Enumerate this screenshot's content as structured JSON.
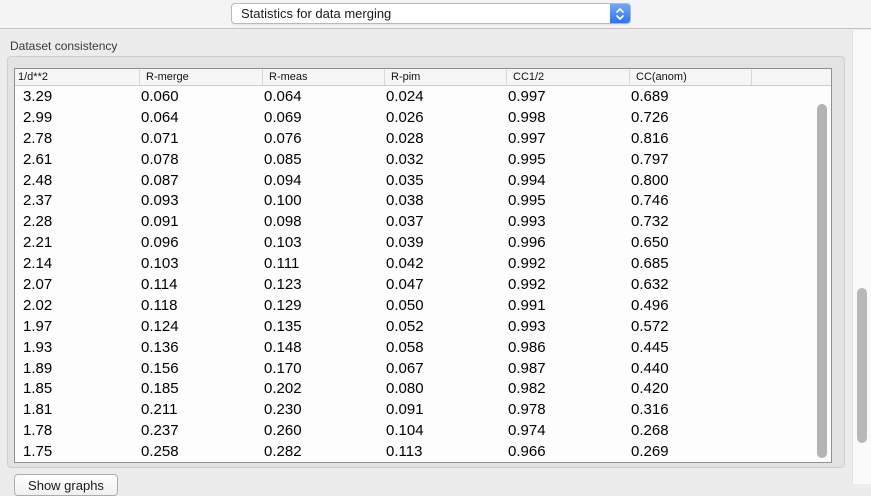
{
  "toolbar": {
    "view_selector": {
      "value": "Statistics for data merging"
    }
  },
  "groupbox": {
    "title": "Dataset consistency"
  },
  "table": {
    "columns": [
      "1/d**2",
      "R-merge",
      "R-meas",
      "R-pim",
      "CC1/2",
      "CC(anom)",
      ""
    ],
    "rows": [
      [
        "3.29",
        "0.060",
        "0.064",
        "0.024",
        "0.997",
        "0.689"
      ],
      [
        "2.99",
        "0.064",
        "0.069",
        "0.026",
        "0.998",
        "0.726"
      ],
      [
        "2.78",
        "0.071",
        "0.076",
        "0.028",
        "0.997",
        "0.816"
      ],
      [
        "2.61",
        "0.078",
        "0.085",
        "0.032",
        "0.995",
        "0.797"
      ],
      [
        "2.48",
        "0.087",
        "0.094",
        "0.035",
        "0.994",
        "0.800"
      ],
      [
        "2.37",
        "0.093",
        "0.100",
        "0.038",
        "0.995",
        "0.746"
      ],
      [
        "2.28",
        "0.091",
        "0.098",
        "0.037",
        "0.993",
        "0.732"
      ],
      [
        "2.21",
        "0.096",
        "0.103",
        "0.039",
        "0.996",
        "0.650"
      ],
      [
        "2.14",
        "0.103",
        "0.111",
        "0.042",
        "0.992",
        "0.685"
      ],
      [
        "2.07",
        "0.114",
        "0.123",
        "0.047",
        "0.992",
        "0.632"
      ],
      [
        "2.02",
        "0.118",
        "0.129",
        "0.050",
        "0.991",
        "0.496"
      ],
      [
        "1.97",
        "0.124",
        "0.135",
        "0.052",
        "0.993",
        "0.572"
      ],
      [
        "1.93",
        "0.136",
        "0.148",
        "0.058",
        "0.986",
        "0.445"
      ],
      [
        "1.89",
        "0.156",
        "0.170",
        "0.067",
        "0.987",
        "0.440"
      ],
      [
        "1.85",
        "0.185",
        "0.202",
        "0.080",
        "0.982",
        "0.420"
      ],
      [
        "1.81",
        "0.211",
        "0.230",
        "0.091",
        "0.978",
        "0.316"
      ],
      [
        "1.78",
        "0.237",
        "0.260",
        "0.104",
        "0.974",
        "0.268"
      ],
      [
        "1.75",
        "0.258",
        "0.282",
        "0.113",
        "0.966",
        "0.269"
      ]
    ]
  },
  "footer": {
    "show_graphs_label": "Show graphs"
  },
  "colors": {
    "accent_blue": "#2e70f5",
    "window_background": "#ececec",
    "groupbox_fill": "#e3e3e3",
    "table_border": "#909090",
    "scrollbar_thumb": "#b3b3b3"
  }
}
